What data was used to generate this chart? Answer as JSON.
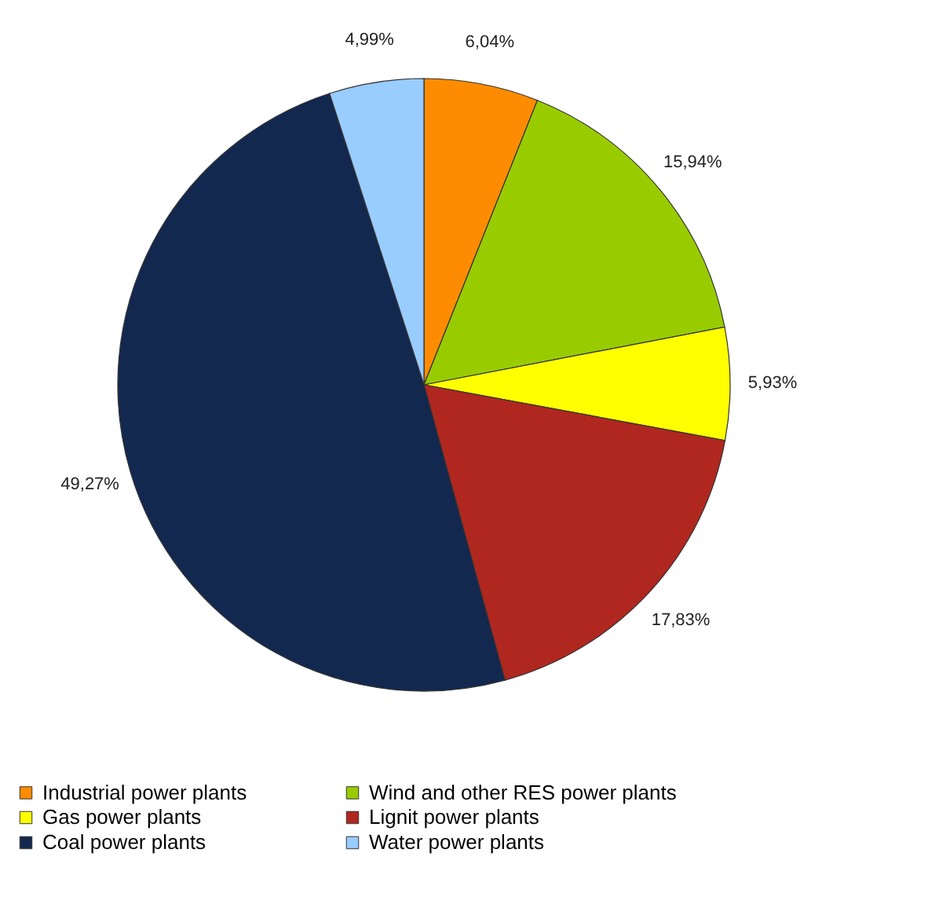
{
  "chart_data": {
    "type": "pie",
    "categories": [
      "Industrial power plants",
      "Wind and other RES power plants",
      "Gas power plants",
      "Lignit power plants",
      "Coal power plants",
      "Water power plants"
    ],
    "values": [
      6.04,
      15.94,
      5.93,
      17.83,
      49.27,
      4.99
    ],
    "colors": [
      "#ff8c00",
      "#99cc00",
      "#ffff00",
      "#b0271f",
      "#13284f",
      "#99ccff"
    ],
    "value_labels": [
      "6,04%",
      "15,94%",
      "5,93%",
      "17,83%",
      "49,27%",
      "4,99%"
    ],
    "legend": "bottom"
  }
}
